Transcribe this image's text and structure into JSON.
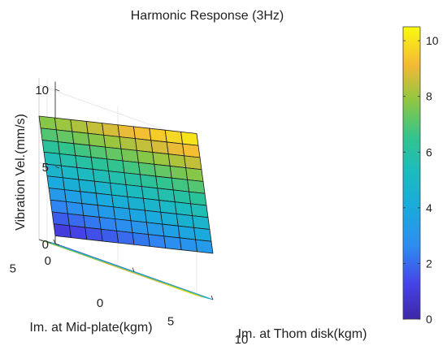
{
  "chart_data": {
    "type": "surface",
    "title": "Harmonic Response (3Hz)",
    "xlabel": "Im. at Thom disk(kgm)",
    "ylabel": "Im. at Mid-plate(kgm)",
    "zlabel": "Vibration Vel.(mm/s)",
    "x_ticks": [
      "0",
      "5",
      "10"
    ],
    "y_ticks": [
      "0",
      "5",
      "10"
    ],
    "z_ticks": [
      "0",
      "5",
      "10"
    ],
    "colorbar_ticks": [
      "0",
      "2",
      "4",
      "6",
      "8",
      "10"
    ],
    "colormap": "parula",
    "xlim": [
      0,
      10
    ],
    "ylim": [
      0,
      10
    ],
    "zlim": [
      0,
      10.5
    ],
    "clim": [
      0,
      10.5
    ],
    "grid": true,
    "x": [
      0,
      1,
      2,
      3,
      4,
      5,
      6,
      7,
      8,
      9,
      10
    ],
    "y": [
      0,
      1,
      2,
      3,
      4,
      5,
      6,
      7,
      8,
      9,
      10
    ],
    "z_model": "z = 0.5 + 0.25*x + 0.75*y",
    "corner_values": {
      "x0_y0": 0.5,
      "x10_y0": 3.0,
      "x0_y10": 8.0,
      "x10_y10": 10.5
    }
  }
}
